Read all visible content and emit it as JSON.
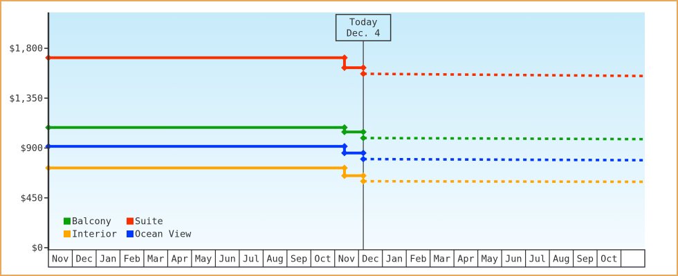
{
  "frame": {
    "border_color": "#E9A95B",
    "background": "#FFFFFF"
  },
  "chart_data": {
    "type": "line",
    "title": "",
    "today": {
      "line1": "Today",
      "line2": "Dec. 4",
      "x_months": 13.2
    },
    "y_axis": {
      "max": 1800,
      "ticks": [
        {
          "label": "$1,800",
          "value": 1800
        },
        {
          "label": "$1,350",
          "value": 1350
        },
        {
          "label": "$900",
          "value": 900
        },
        {
          "label": "$450",
          "value": 450
        },
        {
          "label": "$0",
          "value": 0
        }
      ]
    },
    "x_axis": {
      "months": [
        "Nov",
        "Dec",
        "Jan",
        "Feb",
        "Mar",
        "Apr",
        "May",
        "Jun",
        "Jul",
        "Aug",
        "Sep",
        "Oct",
        "Nov",
        "Dec",
        "Jan",
        "Feb",
        "Mar",
        "Apr",
        "May",
        "Jun",
        "Jul",
        "Aug",
        "Sep",
        "Oct",
        ""
      ]
    },
    "series": [
      {
        "name": "Balcony",
        "color": "#0DA00D",
        "history": [
          [
            0,
            1085
          ],
          [
            12.41,
            1085
          ],
          [
            12.41,
            1045
          ],
          [
            13.2,
            1045
          ]
        ],
        "forecast": [
          [
            13.2,
            990
          ],
          [
            24.94,
            980
          ]
        ]
      },
      {
        "name": "Suite",
        "color": "#F83000",
        "history": [
          [
            0,
            1715
          ],
          [
            12.41,
            1715
          ],
          [
            12.41,
            1625
          ],
          [
            13.2,
            1625
          ]
        ],
        "forecast": [
          [
            13.2,
            1570
          ],
          [
            24.94,
            1550
          ]
        ]
      },
      {
        "name": "Interior",
        "color": "#FFA500",
        "history": [
          [
            0,
            720
          ],
          [
            12.41,
            720
          ],
          [
            12.41,
            650
          ],
          [
            13.2,
            650
          ]
        ],
        "forecast": [
          [
            13.2,
            600
          ],
          [
            24.94,
            595
          ]
        ]
      },
      {
        "name": "Ocean View",
        "color": "#0338FB",
        "history": [
          [
            0,
            915
          ],
          [
            12.41,
            915
          ],
          [
            12.41,
            855
          ],
          [
            13.2,
            855
          ]
        ],
        "forecast": [
          [
            13.2,
            800
          ],
          [
            24.94,
            790
          ]
        ]
      }
    ],
    "legend": {
      "items": [
        "Balcony",
        "Suite",
        "Interior",
        "Ocean View"
      ]
    },
    "plot_background": {
      "top": "#C7EBFA",
      "bottom": "#F4FBFF"
    },
    "axis_color": "#333333",
    "today_line_color": "#444444",
    "today_box_fill": "#C9EDFB"
  }
}
